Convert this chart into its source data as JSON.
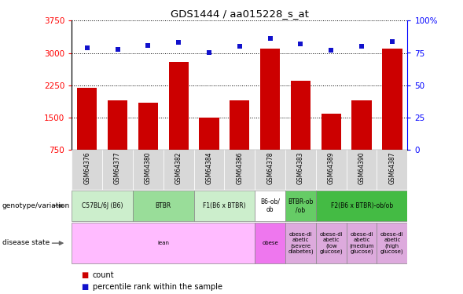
{
  "title": "GDS1444 / aa015228_s_at",
  "samples": [
    "GSM64376",
    "GSM64377",
    "GSM64380",
    "GSM64382",
    "GSM64384",
    "GSM64386",
    "GSM64378",
    "GSM64383",
    "GSM64389",
    "GSM64390",
    "GSM64387"
  ],
  "counts": [
    2200,
    1900,
    1850,
    2800,
    1500,
    1900,
    3100,
    2350,
    1600,
    1900,
    3100
  ],
  "percentiles": [
    79,
    78,
    81,
    83,
    75,
    80,
    86,
    82,
    77,
    80,
    84
  ],
  "ymin": 750,
  "ymax": 3750,
  "yticks": [
    750,
    1500,
    2250,
    3000,
    3750
  ],
  "bar_color": "#cc0000",
  "dot_color": "#1111cc",
  "sample_box_color": "#d8d8d8",
  "genotype_groups": [
    {
      "label": "C57BL/6J (B6)",
      "start": 0,
      "end": 2,
      "color": "#cceecc"
    },
    {
      "label": "BTBR",
      "start": 2,
      "end": 4,
      "color": "#99dd99"
    },
    {
      "label": "F1(B6 x BTBR)",
      "start": 4,
      "end": 6,
      "color": "#cceecc"
    },
    {
      "label": "B6-ob/\nob",
      "start": 6,
      "end": 7,
      "color": "#ffffff"
    },
    {
      "label": "BTBR-ob\n/ob",
      "start": 7,
      "end": 8,
      "color": "#66cc66"
    },
    {
      "label": "F2(B6 x BTBR)-ob/ob",
      "start": 8,
      "end": 11,
      "color": "#44bb44"
    }
  ],
  "disease_groups": [
    {
      "label": "lean",
      "start": 0,
      "end": 6,
      "color": "#ffbbff"
    },
    {
      "label": "obese",
      "start": 6,
      "end": 7,
      "color": "#ee77ee"
    },
    {
      "label": "obese-di\nabetic\n(severe\ndiabetes)",
      "start": 7,
      "end": 8,
      "color": "#ddaadd"
    },
    {
      "label": "obese-di\nabetic\n(low\nglucose)",
      "start": 8,
      "end": 9,
      "color": "#ddaadd"
    },
    {
      "label": "obese-di\nabetic\n(medium\nglucose)",
      "start": 9,
      "end": 10,
      "color": "#ddaadd"
    },
    {
      "label": "obese-di\nabetic\n(high\nglucose)",
      "start": 10,
      "end": 11,
      "color": "#ddaadd"
    }
  ],
  "pct_yticks": [
    0,
    25,
    50,
    75,
    100
  ],
  "pct_yticklabels": [
    "0",
    "25",
    "50",
    "75",
    "100%"
  ]
}
